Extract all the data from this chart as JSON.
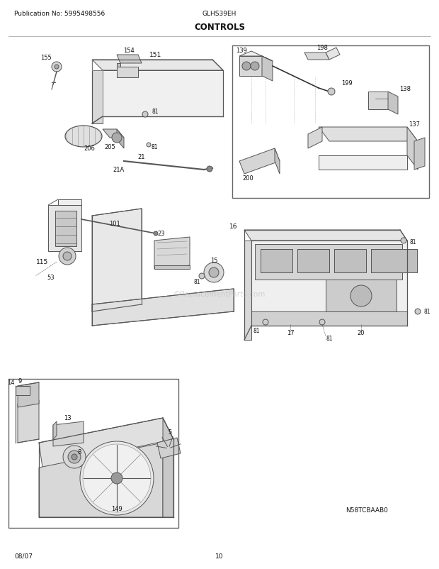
{
  "pub_no": "Publication No: 5995498556",
  "model": "GLHS39EH",
  "section": "CONTROLS",
  "date": "08/07",
  "page": "10",
  "diagram_code": "N58TCBAAB0",
  "bg_color": "#ffffff",
  "fig_width": 6.2,
  "fig_height": 8.03,
  "dpi": 100,
  "watermark": "©ReplacementParts.com",
  "header_fontsize": 6.5,
  "section_fontsize": 8.5,
  "footer_fontsize": 6.5,
  "label_fontsize": 6.5
}
